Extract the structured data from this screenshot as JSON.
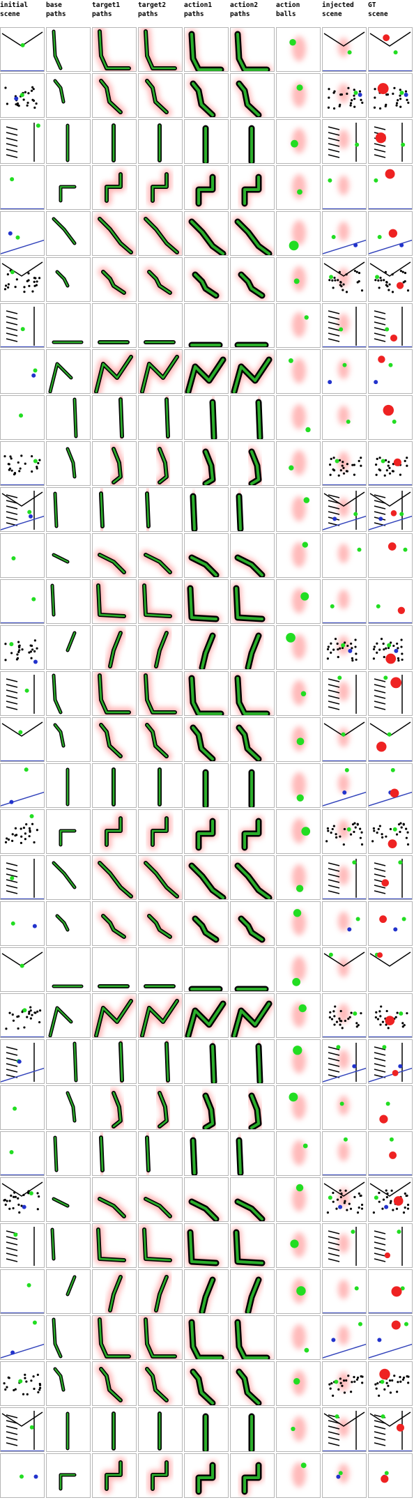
{
  "columns": [
    {
      "id": "initial_scene",
      "line1": "initial",
      "line2": "scene"
    },
    {
      "id": "base_paths",
      "line1": "base",
      "line2": "paths"
    },
    {
      "id": "target1_paths",
      "line1": "target1",
      "line2": "paths"
    },
    {
      "id": "target2_paths",
      "line1": "target2",
      "line2": "paths"
    },
    {
      "id": "action1_paths",
      "line1": "action1",
      "line2": "paths"
    },
    {
      "id": "action2_paths",
      "line1": "action2",
      "line2": "paths"
    },
    {
      "id": "action_balls",
      "line1": "action",
      "line2": "balls"
    },
    {
      "id": "injected_scene",
      "line1": "injected",
      "line2": "scene"
    },
    {
      "id": "gt_scene",
      "line1": "GT",
      "line2": "scene"
    }
  ],
  "row_count": 32,
  "colors": {
    "grid_border": "#b5b5b5",
    "object_black": "#000000",
    "green_ball": "#22dd22",
    "red_ball": "#ee2222",
    "blue_ball": "#2233cc",
    "wall_blue": "#3344bb",
    "heat_red": "#ff7777",
    "path_green": "#33cc33"
  }
}
